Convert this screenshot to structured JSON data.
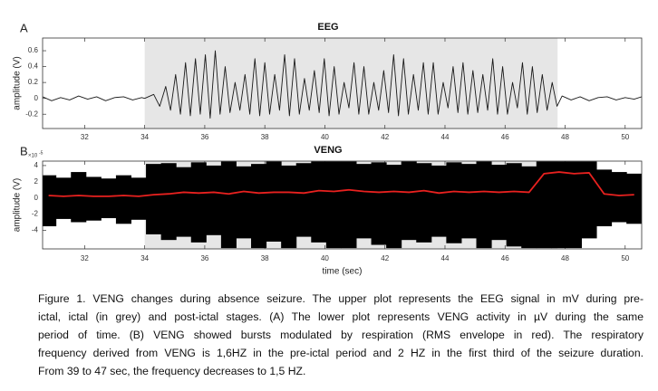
{
  "chart_data": [
    {
      "type": "line",
      "panel_label": "A",
      "title": "EEG",
      "ylabel": "amplitude (V)",
      "xlim": [
        30.6,
        50.55
      ],
      "xticks": [
        32,
        34,
        36,
        38,
        40,
        42,
        44,
        46,
        48,
        50
      ],
      "ylim": [
        -0.38,
        0.76
      ],
      "yticks": [
        -0.2,
        0,
        0.2,
        0.4,
        0.6
      ],
      "shade": [
        34,
        47.75
      ],
      "shade_color": "#e6e6e6",
      "x": [
        30.6,
        30.9,
        31.2,
        31.5,
        31.8,
        32.1,
        32.4,
        32.7,
        33.0,
        33.3,
        33.6,
        33.9,
        34.0,
        34.3,
        34.5,
        34.7,
        34.86,
        35.03,
        35.19,
        35.36,
        35.52,
        35.69,
        35.85,
        36.02,
        36.18,
        36.35,
        36.51,
        36.68,
        36.84,
        37.01,
        37.17,
        37.34,
        37.5,
        37.67,
        37.83,
        38.0,
        38.16,
        38.33,
        38.49,
        38.66,
        38.82,
        38.99,
        39.15,
        39.32,
        39.48,
        39.65,
        39.81,
        39.98,
        40.14,
        40.31,
        40.47,
        40.64,
        40.8,
        40.97,
        41.13,
        41.3,
        41.46,
        41.63,
        41.79,
        41.96,
        42.12,
        42.29,
        42.45,
        42.62,
        42.78,
        42.95,
        43.11,
        43.28,
        43.44,
        43.61,
        43.77,
        43.94,
        44.1,
        44.27,
        44.43,
        44.6,
        44.76,
        44.93,
        45.09,
        45.26,
        45.42,
        45.59,
        45.75,
        45.92,
        46.08,
        46.25,
        46.41,
        46.58,
        46.74,
        46.91,
        47.07,
        47.24,
        47.4,
        47.57,
        47.73,
        47.9,
        48.2,
        48.5,
        48.8,
        49.1,
        49.4,
        49.7,
        50.0,
        50.3,
        50.55
      ],
      "series": [
        {
          "color": "#1a1a1a",
          "values": [
            0.02,
            -0.03,
            0.01,
            -0.02,
            0.03,
            -0.01,
            0.02,
            -0.03,
            0.01,
            0.02,
            -0.02,
            0.01,
            0.0,
            0.05,
            -0.1,
            0.15,
            -0.15,
            0.3,
            -0.2,
            0.45,
            -0.22,
            0.5,
            -0.2,
            0.55,
            -0.25,
            0.6,
            -0.2,
            0.4,
            -0.18,
            0.2,
            -0.15,
            0.3,
            -0.2,
            0.5,
            -0.22,
            0.45,
            -0.2,
            0.3,
            -0.15,
            0.55,
            -0.22,
            0.5,
            -0.2,
            0.25,
            -0.15,
            0.35,
            -0.18,
            0.5,
            -0.22,
            0.4,
            -0.2,
            0.2,
            -0.12,
            0.45,
            -0.2,
            0.4,
            -0.2,
            0.2,
            -0.15,
            0.35,
            -0.18,
            0.55,
            -0.22,
            0.5,
            -0.2,
            0.3,
            -0.15,
            0.45,
            -0.2,
            0.45,
            -0.2,
            0.2,
            -0.12,
            0.4,
            -0.18,
            0.45,
            -0.2,
            0.35,
            -0.18,
            0.3,
            -0.15,
            0.5,
            -0.2,
            0.4,
            -0.2,
            0.2,
            -0.12,
            0.45,
            -0.2,
            0.4,
            -0.18,
            0.3,
            -0.15,
            0.2,
            -0.1,
            0.03,
            -0.02,
            0.02,
            -0.03,
            0.01,
            0.02,
            -0.02,
            0.01,
            -0.01,
            0.02
          ]
        }
      ]
    },
    {
      "type": "line",
      "panel_label": "B",
      "title": "VENG",
      "ylabel": "amplitude (V)",
      "xlabel": "time (sec)",
      "y_exponent_base": "×10",
      "y_exponent": "-5",
      "xlim": [
        30.6,
        50.55
      ],
      "xticks": [
        32,
        34,
        36,
        38,
        40,
        42,
        44,
        46,
        48,
        50
      ],
      "ylim": [
        -6.3,
        4.55
      ],
      "yticks": [
        -4,
        -2,
        0,
        2,
        4
      ],
      "shade": [
        34,
        47.75
      ],
      "shade_color": "#e6e6e6",
      "x": [
        30.8,
        31.3,
        31.8,
        32.3,
        32.8,
        33.3,
        33.8,
        34.3,
        34.8,
        35.3,
        35.8,
        36.3,
        36.8,
        37.3,
        37.8,
        38.3,
        38.8,
        39.3,
        39.8,
        40.3,
        40.8,
        41.3,
        41.8,
        42.3,
        42.8,
        43.3,
        43.8,
        44.3,
        44.8,
        45.3,
        45.8,
        46.3,
        46.8,
        47.3,
        47.8,
        48.3,
        48.8,
        49.3,
        49.8,
        50.3
      ],
      "band": {
        "color": "#000000",
        "upper": [
          2.8,
          2.5,
          3.2,
          2.6,
          2.4,
          2.8,
          2.5,
          4.2,
          4.3,
          3.8,
          4.4,
          4.0,
          4.5,
          3.9,
          4.2,
          4.5,
          4.0,
          4.3,
          4.5,
          4.5,
          4.5,
          4.2,
          4.4,
          4.1,
          4.5,
          4.3,
          4.0,
          4.4,
          4.2,
          4.5,
          4.1,
          4.3,
          3.9,
          4.5,
          4.5,
          4.5,
          4.5,
          3.5,
          3.2,
          3.0
        ],
        "lower": [
          -3.5,
          -2.6,
          -3.0,
          -2.8,
          -2.5,
          -3.2,
          -2.7,
          -4.5,
          -5.2,
          -4.8,
          -5.5,
          -4.6,
          -6.2,
          -5.0,
          -6.2,
          -5.4,
          -6.2,
          -4.8,
          -5.5,
          -6.2,
          -6.2,
          -5.0,
          -5.8,
          -6.2,
          -5.2,
          -5.5,
          -4.8,
          -5.6,
          -5.0,
          -6.2,
          -5.2,
          -6.0,
          -6.2,
          -6.2,
          -6.2,
          -6.2,
          -5.0,
          -3.5,
          -3.0,
          -3.2
        ]
      },
      "series": [
        {
          "color": "#e8211f",
          "values": [
            0.3,
            0.2,
            0.3,
            0.2,
            0.2,
            0.3,
            0.2,
            0.4,
            0.5,
            0.7,
            0.6,
            0.7,
            0.5,
            0.8,
            0.6,
            0.7,
            0.7,
            0.6,
            0.9,
            0.8,
            1.0,
            0.8,
            0.7,
            0.8,
            0.7,
            0.9,
            0.6,
            0.8,
            0.7,
            0.8,
            0.7,
            0.8,
            0.7,
            3.0,
            3.2,
            3.0,
            3.1,
            0.5,
            0.3,
            0.4
          ]
        }
      ]
    }
  ],
  "caption": [
    "Figure 1. VENG changes during absence seizure. The upper plot represents the EEG signal in mV during pre-",
    "ictal, ictal (in grey) and post-ictal stages. (A) The lower plot represents VENG activity in µV during the same",
    "period of time. (B) VENG showed bursts modulated by respiration (RMS envelope in red). The respiratory",
    "frequency derived from VENG is 1,6HZ in the pre-ictal period and 2 HZ in the first third of the seizure duration.",
    "From 39 to 47 sec, the frequency decreases to 1,5 HZ."
  ]
}
